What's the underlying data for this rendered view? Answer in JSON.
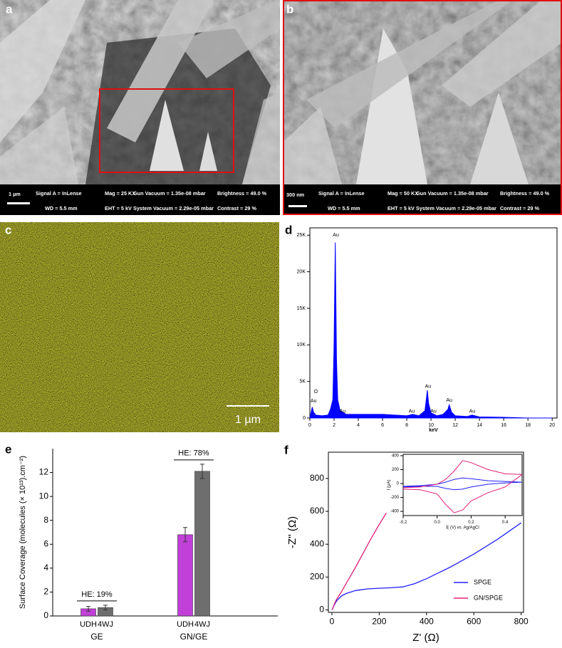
{
  "images": [
    {
      "label": "a",
      "scale": "1 µm",
      "fields": [
        "Signal A = InLense",
        "Mag = 25 KX",
        "Gun Vacuum = 1.35e-08 mbar",
        "Brightness = 49.0 %",
        "WD = 5.5 mm",
        "EHT = 5 kV",
        "System Vacuum = 2.29e-05 mbar",
        "Contrast = 29 %"
      ]
    },
    {
      "label": "b",
      "scale": "300 nm",
      "fields": [
        "Signal A = InLense",
        "Mag = 50 KX",
        "Gun Vacuum = 1.35e-08 mbar",
        "Brightness = 49.0 %",
        "WD = 5.5 mm",
        "EHT = 5 kV",
        "System Vacuum = 2.29e-05 mbar",
        "Contrast = 29 %"
      ]
    },
    {
      "label": "c",
      "scale": "1 µm"
    }
  ],
  "chart_data": [
    {
      "type": "area",
      "panel_label": "d",
      "x_label": "keV",
      "frame": true,
      "x": [
        0,
        0.2,
        0.3,
        0.5,
        1,
        1.5,
        1.7,
        1.9,
        2.0,
        2.1,
        2.2,
        2.3,
        2.5,
        3,
        4,
        5,
        6,
        7,
        8,
        8.5,
        9,
        9.5,
        9.7,
        9.8,
        10,
        10.5,
        11,
        11.4,
        11.5,
        11.7,
        12,
        13,
        13.4,
        14,
        16,
        18,
        20
      ],
      "series": [
        {
          "color": "#0000ff",
          "values": [
            0,
            1500,
            800,
            400,
            300,
            400,
            1200,
            2500,
            10000,
            24000,
            8000,
            2500,
            1000,
            500,
            500,
            500,
            500,
            400,
            300,
            500,
            300,
            1000,
            3800,
            2000,
            700,
            300,
            500,
            1200,
            1800,
            800,
            300,
            200,
            400,
            150,
            100,
            0,
            0
          ]
        }
      ],
      "xlim": [
        0,
        20.4
      ],
      "ylim": [
        0,
        26000
      ],
      "xticks": [
        0,
        2,
        4,
        6,
        8,
        10,
        12,
        14,
        16,
        18,
        20
      ],
      "yticks": [
        0,
        {
          "value": 5000,
          "label": "5K"
        },
        {
          "value": 10000,
          "label": "10K"
        },
        {
          "value": 15000,
          "label": "15K"
        },
        {
          "value": 20000,
          "label": "20K"
        },
        {
          "value": 25000,
          "label": "25K"
        }
      ],
      "annotations": [
        {
          "text": "Au",
          "x": 2.15,
          "y": 25000
        },
        {
          "text": "O",
          "x": 0.5,
          "y": 3600
        },
        {
          "text": "Au",
          "x": 0.3,
          "y": 2300
        },
        {
          "text": "Au",
          "x": 2.7,
          "y": 900
        },
        {
          "text": "Au",
          "x": 8.4,
          "y": 900
        },
        {
          "text": "Au",
          "x": 9.75,
          "y": 4300
        },
        {
          "text": "Au",
          "x": 10.2,
          "y": 900
        },
        {
          "text": "Au",
          "x": 11.5,
          "y": 2400
        },
        {
          "text": "Au",
          "x": 13.4,
          "y": 900
        }
      ]
    },
    {
      "type": "bar",
      "panel_label": "e",
      "y_label": "Surface Coverage (molecules (× 10¹³).cm⁻²)",
      "frame": false,
      "categories": [
        "GE",
        "GN/GE"
      ],
      "series": [
        {
          "name": "UDH",
          "color": "#c040d8",
          "values": [
            0.6,
            6.8
          ],
          "errors": [
            0.2,
            0.6
          ]
        },
        {
          "name": "4WJ",
          "color": "#6e6e6e",
          "values": [
            0.7,
            12.1
          ],
          "errors": [
            0.2,
            0.6
          ]
        }
      ],
      "ylim": [
        0,
        14
      ],
      "yticks": [
        0,
        2,
        4,
        6,
        8,
        10,
        12
      ],
      "annotations": [
        {
          "text": "HE: 19%",
          "category": 0
        },
        {
          "text": "HE: 78%",
          "category": 1
        }
      ]
    },
    {
      "type": "line",
      "panel_label": "f",
      "x_label": "Z' (Ω)",
      "y_label": "-Z'' (Ω)",
      "frame": true,
      "legend": "lower right",
      "series": [
        {
          "name": "SPGE",
          "color": "#2020ff",
          "x": [
            0,
            10,
            20,
            40,
            60,
            100,
            150,
            200,
            250,
            300,
            350,
            400,
            450,
            500,
            600,
            700,
            800
          ],
          "values": [
            0,
            30,
            55,
            85,
            100,
            118,
            128,
            132,
            135,
            140,
            160,
            190,
            225,
            260,
            340,
            430,
            530
          ]
        },
        {
          "name": "GN/SPGE",
          "color": "#e0207a",
          "x": [
            0,
            5,
            10,
            20,
            40,
            60,
            80,
            100,
            130,
            160,
            200,
            230
          ],
          "values": [
            0,
            15,
            35,
            65,
            110,
            160,
            210,
            260,
            340,
            420,
            520,
            590
          ]
        }
      ],
      "xlim": [
        -15,
        810
      ],
      "ylim": [
        -15,
        960
      ],
      "xticks": [
        0,
        200,
        400,
        600,
        800
      ],
      "yticks": [
        0,
        200,
        400,
        600,
        800
      ]
    },
    {
      "type": "line",
      "x_label": "E (V) vs. Ag/AgCl",
      "y_label": "I (µA)",
      "frame": true,
      "series": [
        {
          "color": "#2020ff",
          "x": [
            -0.2,
            -0.1,
            0,
            0.05,
            0.1,
            0.15,
            0.2,
            0.3,
            0.4,
            0.5,
            0.4,
            0.3,
            0.2,
            0.15,
            0.1,
            0.05,
            0,
            -0.1,
            -0.2
          ],
          "values": [
            -40,
            -30,
            -10,
            20,
            60,
            80,
            70,
            40,
            30,
            20,
            10,
            -10,
            -50,
            -80,
            -90,
            -70,
            -40,
            -40,
            -50
          ]
        },
        {
          "color": "#e0207a",
          "x": [
            -0.2,
            -0.1,
            0,
            0.05,
            0.1,
            0.15,
            0.2,
            0.3,
            0.4,
            0.5,
            0.4,
            0.3,
            0.2,
            0.15,
            0.1,
            0.05,
            0,
            -0.1,
            -0.2
          ],
          "values": [
            -60,
            -50,
            -10,
            60,
            180,
            330,
            300,
            200,
            140,
            130,
            -50,
            -130,
            -250,
            -380,
            -420,
            -300,
            -150,
            -90,
            -80
          ]
        }
      ],
      "xlim": [
        -0.2,
        0.5
      ],
      "ylim": [
        -460,
        420
      ],
      "xticks": [
        -0.2,
        {
          "value": 0,
          "label": "0.0"
        },
        0.2,
        0.4
      ],
      "yticks": [
        -400,
        -200,
        0,
        200,
        400
      ]
    }
  ]
}
